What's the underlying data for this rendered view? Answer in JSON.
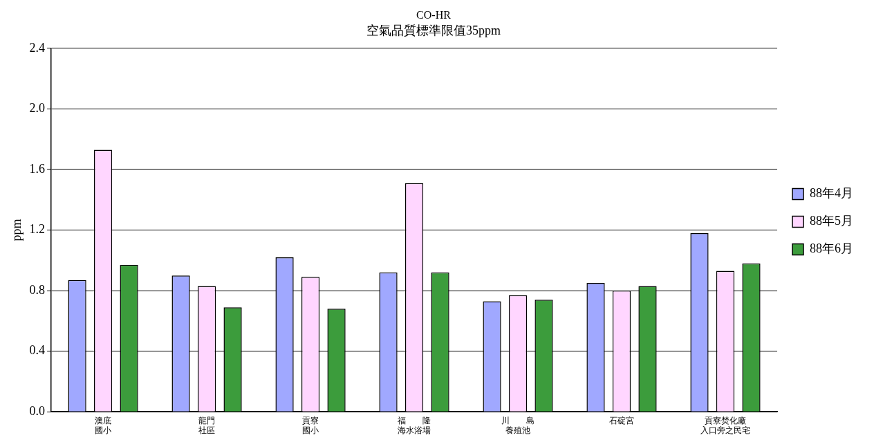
{
  "chart_data": {
    "type": "bar",
    "title": "CO-HR",
    "subtitle": "空氣品質標準限值35ppm",
    "ylabel": "ppm",
    "categories": [
      "澳底國小",
      "龍門社區",
      "貢寮國小",
      "福　　隆海水浴場",
      "川　　島養殖池",
      "石碇宮",
      "貢寮焚化廠入口旁之民宅"
    ],
    "series": [
      {
        "name": "88年4月",
        "color": "#a0a8ff",
        "values": [
          0.87,
          0.9,
          1.02,
          0.92,
          0.73,
          0.85,
          1.18
        ]
      },
      {
        "name": "88年5月",
        "color": "#ffd6ff",
        "values": [
          1.73,
          0.83,
          0.89,
          1.51,
          0.77,
          0.8,
          0.93
        ]
      },
      {
        "name": "88年6月",
        "color": "#3c9c3c",
        "values": [
          0.97,
          0.69,
          0.68,
          0.92,
          0.74,
          0.83,
          0.98
        ]
      }
    ],
    "ylim": [
      0,
      2.4
    ],
    "yticks": [
      {
        "value": 0,
        "label": "0.0"
      },
      {
        "value": 0.4,
        "label": "0.4"
      },
      {
        "value": 0.8,
        "label": "0.8"
      },
      {
        "value": 1.2,
        "label": "1.2"
      },
      {
        "value": 1.6,
        "label": "1.6"
      },
      {
        "value": 2,
        "label": "2.0"
      },
      {
        "value": 2.4,
        "label": "2.4"
      }
    ],
    "grid": "y",
    "legend": "right"
  }
}
